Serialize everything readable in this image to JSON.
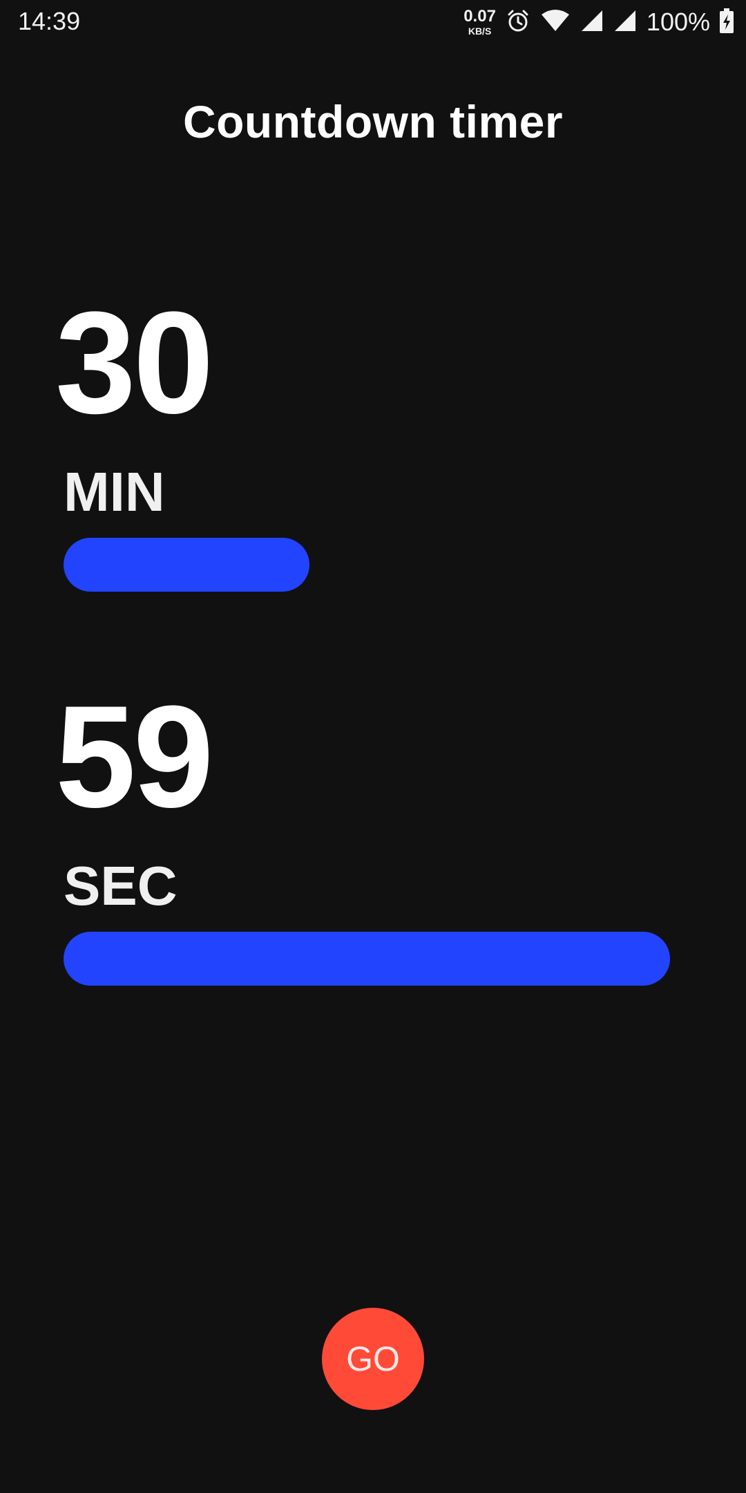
{
  "status_bar": {
    "time": "14:39",
    "net_speed_value": "0.07",
    "net_speed_unit": "KB/S",
    "battery_percent": "100%",
    "icons": [
      "alarm-icon",
      "wifi-icon",
      "signal-icon",
      "signal-icon",
      "battery-charging-icon"
    ]
  },
  "header": {
    "title": "Countdown timer"
  },
  "timer": {
    "minutes": {
      "value": "30",
      "label": "MIN",
      "fill_fraction": 0.405
    },
    "seconds": {
      "value": "59",
      "label": "SEC",
      "fill_fraction": 1.0
    }
  },
  "actions": {
    "go_label": "GO"
  },
  "colors": {
    "background": "#111112",
    "bar": "#2244ff",
    "go_button": "#ff4a38"
  }
}
